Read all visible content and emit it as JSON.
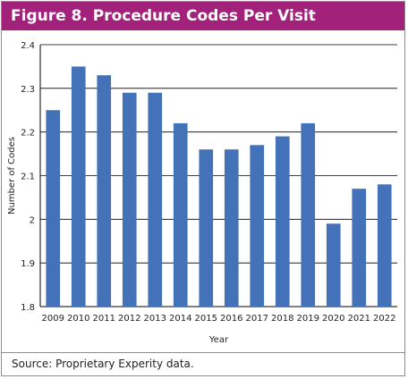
{
  "figure": {
    "title": "Figure 8. Procedure Codes Per Visit",
    "source": "Source: Proprietary Experity data.",
    "title_bar_color": "#a2227b"
  },
  "chart_data": {
    "type": "bar",
    "title": "Figure 8. Procedure Codes Per Visit",
    "xlabel": "Year",
    "ylabel": "Number of Codes",
    "categories": [
      "2009",
      "2010",
      "2011",
      "2012",
      "2013",
      "2014",
      "2015",
      "2016",
      "2017",
      "2018",
      "2019",
      "2020",
      "2021",
      "2022"
    ],
    "values": [
      2.25,
      2.35,
      2.33,
      2.29,
      2.29,
      2.22,
      2.16,
      2.16,
      2.17,
      2.19,
      2.22,
      1.99,
      2.07,
      2.08
    ],
    "ylim": [
      1.8,
      2.4
    ],
    "yticks": [
      "1.8",
      "1.9",
      "2",
      "2.1",
      "2.2",
      "2.3",
      "2.4"
    ],
    "bar_color": "#4472b8",
    "grid": true,
    "legend": "none"
  }
}
